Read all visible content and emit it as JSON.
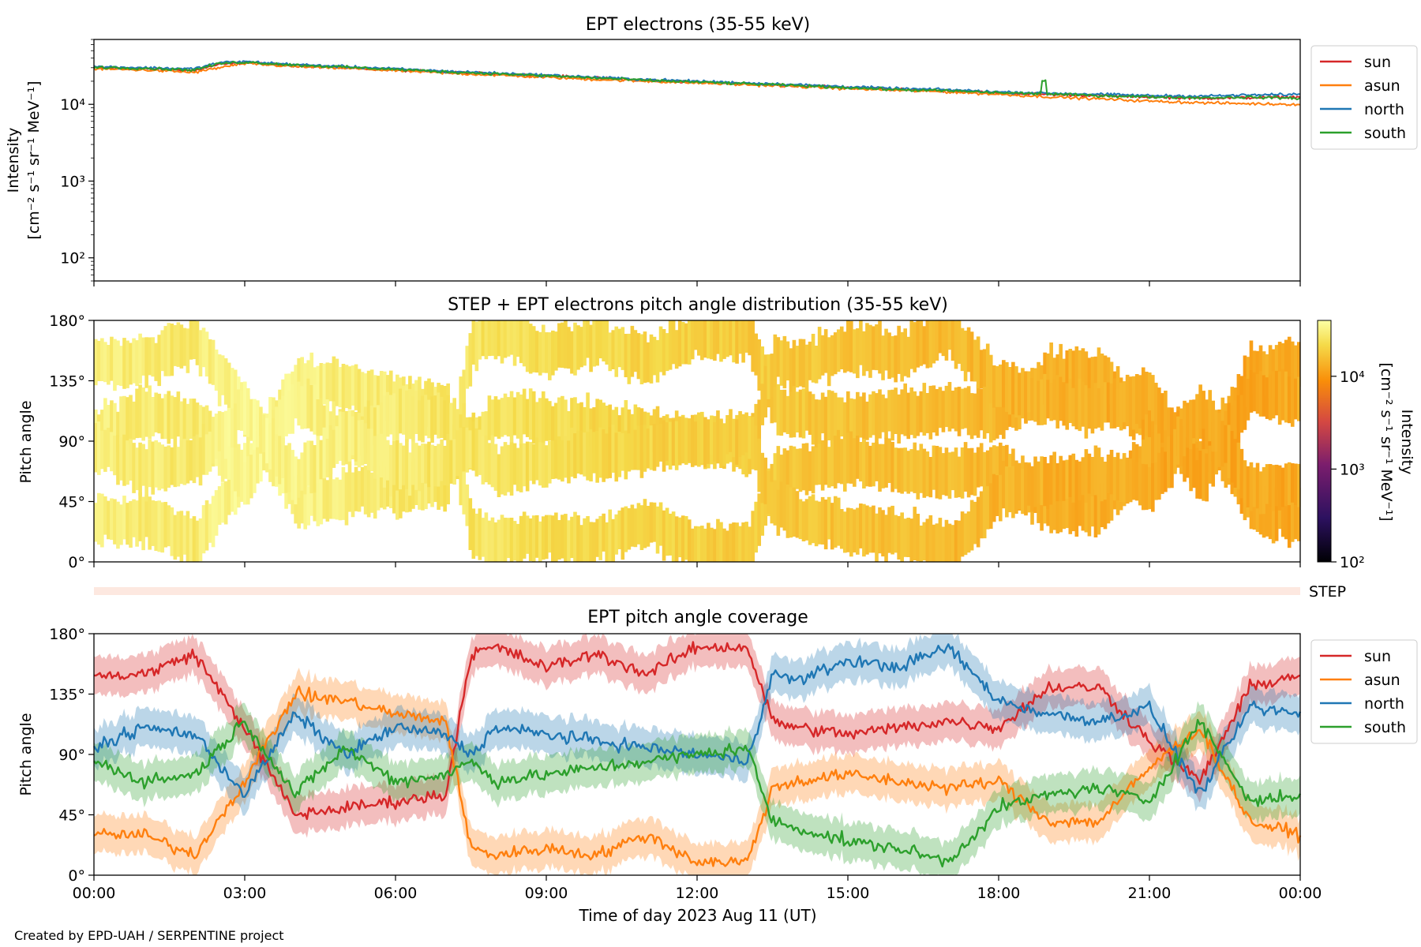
{
  "chart_data": [
    {
      "type": "line",
      "title": "EPT electrons (35-55 keV)",
      "ylabel_line1": "Intensity",
      "ylabel_line2": "[cm⁻² s⁻¹ sr⁻¹ MeV⁻¹]",
      "yscale": "log",
      "ylim": [
        50,
        70000
      ],
      "yticks": [
        {
          "value": 100,
          "label": "10²"
        },
        {
          "value": 1000,
          "label": "10³"
        },
        {
          "value": 10000,
          "label": "10⁴"
        }
      ],
      "x_hours": [
        0,
        1,
        2,
        2.5,
        3,
        4,
        5,
        6,
        7,
        8,
        9,
        10,
        11,
        12,
        13,
        14,
        15,
        16,
        17,
        18,
        19,
        20,
        21,
        22,
        23,
        24
      ],
      "series": [
        {
          "name": "sun",
          "color": "#d62728",
          "values": [
            30000,
            29000,
            27500,
            33000,
            35000,
            32000,
            30000,
            28000,
            26000,
            25000,
            23500,
            22000,
            20500,
            19500,
            18500,
            17500,
            16500,
            15500,
            15000,
            14000,
            13500,
            13000,
            12500,
            12000,
            12200,
            12500
          ]
        },
        {
          "name": "asun",
          "color": "#ff7f0e",
          "values": [
            29000,
            28000,
            26000,
            30000,
            34000,
            31000,
            29500,
            27500,
            25500,
            24000,
            22500,
            21000,
            20000,
            19000,
            18000,
            17000,
            16000,
            15200,
            14500,
            13500,
            12500,
            11800,
            11000,
            10500,
            10200,
            10000
          ]
        },
        {
          "name": "north",
          "color": "#1f77b4",
          "values": [
            31000,
            30000,
            29000,
            35000,
            36000,
            33000,
            31000,
            29000,
            27000,
            25500,
            24000,
            22500,
            21000,
            20000,
            19000,
            18000,
            17000,
            16000,
            15500,
            14500,
            14000,
            13500,
            13000,
            12800,
            13200,
            13500
          ]
        },
        {
          "name": "south",
          "color": "#2ca02c",
          "values": [
            30500,
            29500,
            28000,
            34000,
            35500,
            32500,
            30500,
            28500,
            26500,
            25000,
            23500,
            22000,
            20500,
            19500,
            18500,
            17500,
            16500,
            15500,
            15000,
            14200,
            13600,
            13000,
            12500,
            12200,
            12400,
            12000
          ]
        }
      ],
      "legend_position": "outside-right"
    },
    {
      "type": "heatmap",
      "title": "STEP + EPT electrons pitch angle distribution (35-55 keV)",
      "ylabel": "Pitch angle",
      "ylim": [
        0,
        180
      ],
      "yticks": [
        "0°",
        "45°",
        "90°",
        "135°",
        "180°"
      ],
      "colorbar": {
        "label_line1": "Intensity",
        "label_line2": "[cm⁻² s⁻¹ sr⁻¹ MeV⁻¹]",
        "scale": "log",
        "range": [
          100,
          40000
        ],
        "ticks": [
          {
            "value": 100,
            "label": "10²"
          },
          {
            "value": 1000,
            "label": "10³"
          },
          {
            "value": 10000,
            "label": "10⁴"
          }
        ]
      }
    },
    {
      "type": "band",
      "label": "STEP",
      "color": "#fde8e0"
    },
    {
      "type": "line",
      "title": "EPT pitch angle coverage",
      "ylabel": "Pitch angle",
      "ylim": [
        0,
        180
      ],
      "yticks": [
        "0°",
        "45°",
        "90°",
        "135°",
        "180°"
      ],
      "x_hours": [
        0,
        1,
        2,
        3,
        4,
        5,
        6,
        7,
        7.5,
        8,
        9,
        10,
        11,
        12,
        13,
        13.5,
        14,
        15,
        16,
        17,
        18,
        19,
        20,
        21,
        22,
        23,
        24
      ],
      "series": [
        {
          "name": "sun",
          "color": "#d62728",
          "values": [
            148,
            150,
            165,
            110,
            45,
            50,
            55,
            60,
            165,
            170,
            155,
            165,
            150,
            170,
            170,
            115,
            110,
            105,
            110,
            115,
            110,
            140,
            140,
            100,
            70,
            140,
            150
          ]
        },
        {
          "name": "asun",
          "color": "#ff7f0e",
          "values": [
            30,
            30,
            15,
            70,
            135,
            130,
            120,
            115,
            20,
            15,
            20,
            15,
            30,
            10,
            10,
            65,
            70,
            75,
            70,
            65,
            70,
            40,
            40,
            80,
            110,
            40,
            30
          ]
        },
        {
          "name": "north",
          "color": "#1f77b4",
          "values": [
            95,
            110,
            105,
            60,
            120,
            90,
            110,
            105,
            90,
            110,
            105,
            100,
            95,
            90,
            85,
            150,
            145,
            160,
            155,
            170,
            130,
            120,
            115,
            125,
            60,
            125,
            120
          ]
        },
        {
          "name": "south",
          "color": "#2ca02c",
          "values": [
            85,
            70,
            75,
            115,
            60,
            95,
            70,
            75,
            85,
            70,
            75,
            80,
            85,
            90,
            95,
            40,
            35,
            25,
            20,
            10,
            50,
            60,
            65,
            55,
            115,
            55,
            60
          ]
        }
      ],
      "legend_position": "outside-right"
    }
  ],
  "x_axis": {
    "ticks": [
      "00:00",
      "03:00",
      "06:00",
      "09:00",
      "12:00",
      "15:00",
      "18:00",
      "21:00",
      "00:00"
    ],
    "xlabel": "Time of day 2023 Aug 11 (UT)"
  },
  "credit": "Created by EPD-UAH / SERPENTINE project"
}
